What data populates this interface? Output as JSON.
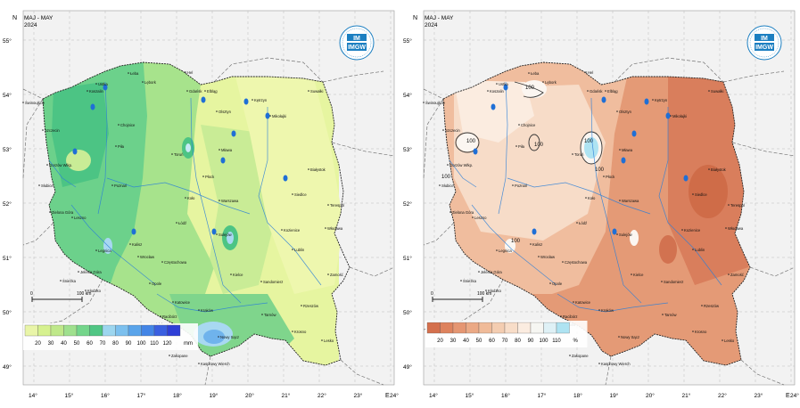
{
  "maps": [
    {
      "title": "MAJ - MAY",
      "year": "2024",
      "logo_text": [
        "IMGW"
      ],
      "legend_values": [
        "20",
        "30",
        "40",
        "50",
        "60",
        "70",
        "80",
        "90",
        "100",
        "110",
        "120"
      ],
      "legend_unit": "mm",
      "legend_colors": [
        "#e9f5a8",
        "#d6f18f",
        "#bfe88a",
        "#9fe08e",
        "#74d58b",
        "#50c684",
        "#9dd6ef",
        "#7cc0ee",
        "#5aa4ea",
        "#4385e6",
        "#3a5fe0",
        "#2f3fd6"
      ],
      "scale_label": "100 km",
      "scale_zero": "0",
      "contour_labels": []
    },
    {
      "title": "MAJ - MAY",
      "year": "2024",
      "logo_text": [
        "IMGW"
      ],
      "legend_values": [
        "20",
        "30",
        "40",
        "50",
        "60",
        "70",
        "80",
        "90",
        "100",
        "110"
      ],
      "legend_unit": "%",
      "legend_colors": [
        "#d4704d",
        "#de835e",
        "#e59672",
        "#eba985",
        "#f0bb99",
        "#f4cdb1",
        "#f8ddc8",
        "#fbece0",
        "#f6f6f2",
        "#dff1f6",
        "#aee3f2"
      ],
      "scale_label": "100 km",
      "scale_zero": "0",
      "contour_labels": [
        "100",
        "100",
        "100",
        "100",
        "100",
        "100",
        "100"
      ]
    }
  ],
  "axes": {
    "lon_labels": [
      "14°",
      "15°",
      "16°",
      "17°",
      "18°",
      "19°",
      "20°",
      "21°",
      "22°",
      "23°",
      "24°"
    ],
    "lat_labels": [
      "55°",
      "54°",
      "53°",
      "52°",
      "51°",
      "50°",
      "49°"
    ],
    "north_label": "N",
    "east_label": "E"
  },
  "cities": [
    "Świnoujście",
    "Szczecin",
    "Koszalin",
    "Ustka",
    "Łeba",
    "Lębork",
    "Hel",
    "Gdańsk",
    "Elbląg",
    "Chojnice",
    "Piła",
    "Toruń",
    "Gorzów Wlkp.",
    "Słubice",
    "Poznań",
    "Zielona Góra",
    "Leszno",
    "Legnica",
    "Jelenia Góra",
    "Śnieżka",
    "Wrocław",
    "Kłodzko",
    "Opole",
    "Kalisz",
    "Koło",
    "Łódź",
    "Płock",
    "Mława",
    "Olsztyn",
    "Mikołajki",
    "Kętrzyn",
    "Suwałki",
    "Białystok",
    "Warszawa",
    "Siedlce",
    "Terespol",
    "Sulejów",
    "Kozienice",
    "Lublin",
    "Włodawa",
    "Zamość",
    "Sandomierz",
    "Kielce",
    "Częstochowa",
    "Racibórz",
    "Katowice",
    "Kraków",
    "Bielsko-Biała",
    "Tarnów",
    "Rzeszów",
    "Krosno",
    "Lesko",
    "Nowy Sącz",
    "Zakopane",
    "Kasprowy Wierch"
  ]
}
